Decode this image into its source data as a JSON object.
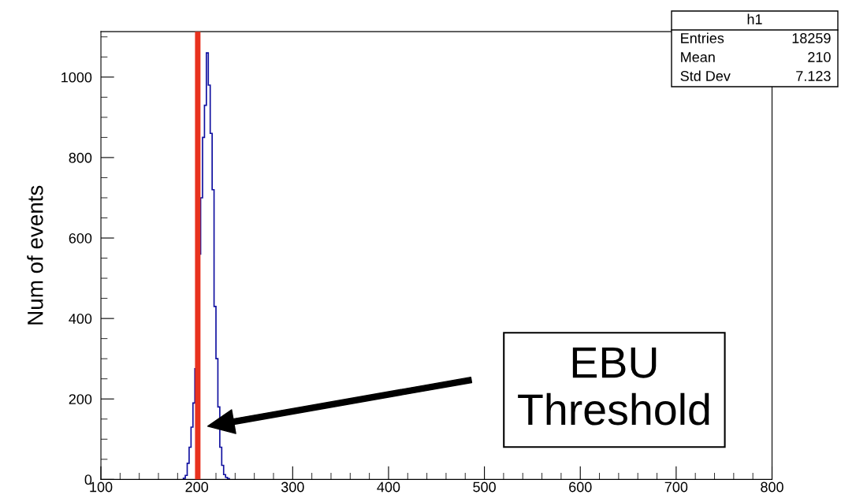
{
  "chart_data": {
    "type": "histogram",
    "ylabel": "Num of events",
    "bins": [
      186,
      188,
      190,
      192,
      194,
      196,
      198,
      200,
      202,
      204,
      206,
      208,
      210,
      212,
      214,
      216,
      218,
      220,
      222,
      224,
      226,
      228,
      230,
      232,
      234
    ],
    "values": [
      3,
      10,
      40,
      80,
      130,
      190,
      275,
      400,
      560,
      700,
      850,
      930,
      1060,
      980,
      860,
      720,
      430,
      300,
      180,
      80,
      35,
      12,
      5,
      2
    ],
    "color": "#1010a0",
    "xlim": [
      100,
      800
    ],
    "xticks": [
      100,
      200,
      300,
      400,
      500,
      600,
      700,
      800
    ],
    "ylim": [
      0,
      1113
    ],
    "yticks": [
      0,
      200,
      400,
      600,
      800,
      1000
    ],
    "grid": false,
    "ref_lines": [
      {
        "axis": "x",
        "value": 201,
        "label": null,
        "color": "#e8321e"
      }
    ],
    "annotations": [
      "h1",
      "Entries",
      "18259",
      "Mean",
      "210",
      "Std Dev",
      "7.123",
      "EBU\nThreshold"
    ]
  }
}
